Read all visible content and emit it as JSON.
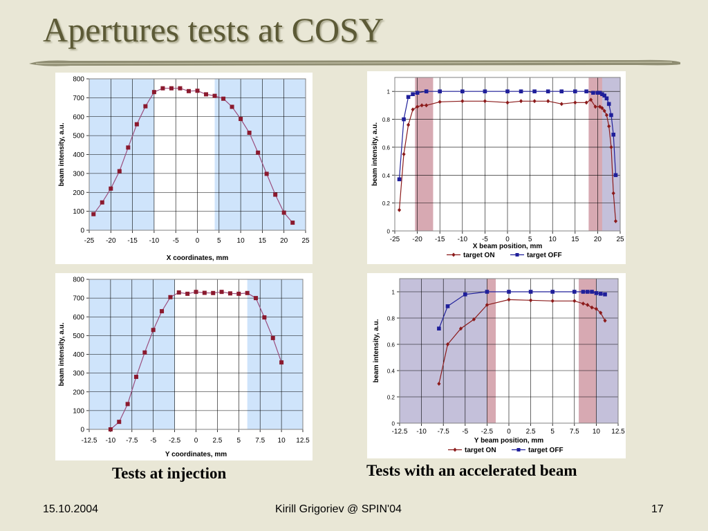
{
  "slide": {
    "title": "Apertures tests at COSY",
    "caption_left": "Tests at injection",
    "caption_right": "Tests with an accelerated beam",
    "footer_date": "15.10.2004",
    "footer_center": "Kirill Grigoriev @ SPIN'04",
    "footer_page": "17"
  },
  "colors": {
    "background": "#e9e7d6",
    "title": "#5c5a36",
    "band_blue": "#cfe4fb",
    "band_lavender": "#c4c0da",
    "band_red": "#d7a9b2",
    "series_red": "#8b1a1a",
    "series_blue": "#1f1f9a",
    "injection_line": "#9a4e7e",
    "injection_marker": "#8b1a2e"
  },
  "chart_data": [
    {
      "type": "line",
      "xlabel": "X coordinates, mm",
      "ylabel": "beam intensity, a.u.",
      "xlim": [
        -25,
        25
      ],
      "ylim": [
        0,
        800
      ],
      "xticks": [
        "-25",
        "-20",
        "-15",
        "-10",
        "-5",
        "0",
        "5",
        "10",
        "15",
        "20",
        "25"
      ],
      "yticks": [
        "0",
        "100",
        "200",
        "300",
        "400",
        "500",
        "600",
        "700",
        "800"
      ],
      "shaded_regions": [
        [
          -25,
          -10
        ],
        [
          4,
          25
        ]
      ],
      "series": [
        {
          "x": [
            -24,
            -22,
            -20,
            -18,
            -16,
            -14,
            -12,
            -10,
            -8,
            -6,
            -4,
            -2,
            0,
            2,
            4,
            6,
            8,
            10,
            12,
            14,
            16,
            18,
            20,
            22
          ],
          "y": [
            85,
            147,
            220,
            312,
            437,
            560,
            655,
            730,
            750,
            750,
            750,
            735,
            737,
            718,
            710,
            695,
            652,
            588,
            515,
            410,
            298,
            188,
            93,
            40
          ]
        }
      ],
      "grid": true
    },
    {
      "type": "line",
      "xlabel": "X beam position, mm",
      "ylabel": "beam intensity, a.u.",
      "xlim": [
        -25,
        25
      ],
      "ylim": [
        0,
        1.1
      ],
      "xticks": [
        "-25",
        "-20",
        "-15",
        "-10",
        "-5",
        "0",
        "5",
        "10",
        "15",
        "20",
        "25"
      ],
      "yticks": [
        "0",
        "0.2",
        "0.4",
        "0.6",
        "0.8",
        "1"
      ],
      "shaded_regions_lavender": [
        [
          -20.5,
          -20
        ],
        [
          20,
          25
        ]
      ],
      "shaded_regions_red": [
        [
          -20.5,
          -16.5
        ],
        [
          18,
          21
        ]
      ],
      "legend": "bottom",
      "series": [
        {
          "name": "target ON",
          "x": [
            -24,
            -23,
            -22,
            -21,
            -20,
            -19,
            -18,
            -15,
            -10,
            -5,
            0,
            3,
            6,
            9,
            12,
            15,
            17.5,
            18.5,
            19.5,
            20.5,
            21,
            21.5,
            22,
            22.5,
            23,
            23.5,
            24
          ],
          "y": [
            0.15,
            0.55,
            0.76,
            0.87,
            0.89,
            0.9,
            0.9,
            0.925,
            0.93,
            0.93,
            0.92,
            0.93,
            0.93,
            0.93,
            0.91,
            0.92,
            0.92,
            0.94,
            0.89,
            0.89,
            0.88,
            0.86,
            0.83,
            0.75,
            0.6,
            0.27,
            0.07
          ]
        },
        {
          "name": "target OFF",
          "x": [
            -24,
            -23,
            -22,
            -21,
            -20,
            -18,
            -15,
            -10,
            -5,
            0,
            3,
            6,
            9,
            12,
            15,
            17.5,
            19,
            20,
            20.5,
            21,
            21.5,
            22,
            22.5,
            23,
            23.5,
            24
          ],
          "y": [
            0.37,
            0.8,
            0.96,
            0.98,
            0.99,
            1.0,
            1.0,
            1.0,
            1.0,
            1.0,
            1.0,
            1.0,
            1.0,
            1.0,
            1.0,
            1.0,
            0.99,
            0.99,
            0.99,
            0.98,
            0.97,
            0.95,
            0.91,
            0.83,
            0.69,
            0.4
          ]
        }
      ],
      "grid": true
    },
    {
      "type": "line",
      "xlabel": "Y coordinates, mm",
      "ylabel": "beam intensity, a.u.",
      "xlim": [
        -12.5,
        12.5
      ],
      "ylim": [
        0,
        800
      ],
      "xticks": [
        "-12.5",
        "-10",
        "-7.5",
        "-5",
        "-2.5",
        "0",
        "2.5",
        "5",
        "7.5",
        "10",
        "12.5"
      ],
      "yticks": [
        "0",
        "100",
        "200",
        "300",
        "400",
        "500",
        "600",
        "700",
        "800"
      ],
      "shaded_regions": [
        [
          -12.5,
          -2.5
        ],
        [
          6,
          12.5
        ]
      ],
      "series": [
        {
          "x": [
            -10,
            -9,
            -8,
            -7,
            -6,
            -5,
            -4,
            -3,
            -2,
            -1,
            0,
            1,
            2,
            3,
            4,
            5,
            6,
            7,
            8,
            9,
            10
          ],
          "y": [
            0,
            40,
            135,
            280,
            410,
            530,
            630,
            705,
            730,
            723,
            733,
            728,
            727,
            733,
            725,
            723,
            727,
            700,
            597,
            487,
            357
          ]
        }
      ],
      "grid": true
    },
    {
      "type": "line",
      "xlabel": "Y beam position, mm",
      "ylabel": "beam intensity, a.u.",
      "xlim": [
        -12.5,
        12.5
      ],
      "ylim": [
        0,
        1.1
      ],
      "xticks": [
        "-12.5",
        "-10",
        "-7.5",
        "-5",
        "-2.5",
        "0",
        "2.5",
        "5",
        "7.5",
        "10",
        "12.5"
      ],
      "yticks": [
        "0",
        "0.2",
        "0.4",
        "0.6",
        "0.8",
        "1"
      ],
      "shaded_regions_lavender": [
        [
          -12.5,
          -2.5
        ],
        [
          8,
          12.5
        ]
      ],
      "shaded_regions_red": [
        [
          -2.5,
          -1.5
        ],
        [
          8,
          10
        ]
      ],
      "legend": "bottom",
      "series": [
        {
          "name": "target ON",
          "x": [
            -8,
            -7,
            -5.5,
            -4,
            -2.5,
            0,
            2.5,
            5,
            7.5,
            8.5,
            9,
            9.5,
            10,
            10.5,
            11
          ],
          "y": [
            0.3,
            0.6,
            0.72,
            0.79,
            0.9,
            0.94,
            0.935,
            0.93,
            0.93,
            0.91,
            0.9,
            0.88,
            0.87,
            0.84,
            0.78
          ]
        },
        {
          "name": "target OFF",
          "x": [
            -8,
            -7,
            -5,
            -2.5,
            0,
            2.5,
            5,
            7.5,
            8.5,
            9,
            9.5,
            10,
            10.5,
            11
          ],
          "y": [
            0.72,
            0.89,
            0.98,
            1.0,
            1.0,
            1.0,
            1.0,
            1.0,
            1.0,
            1.0,
            1.0,
            0.99,
            0.985,
            0.98
          ]
        }
      ],
      "grid": true
    }
  ]
}
